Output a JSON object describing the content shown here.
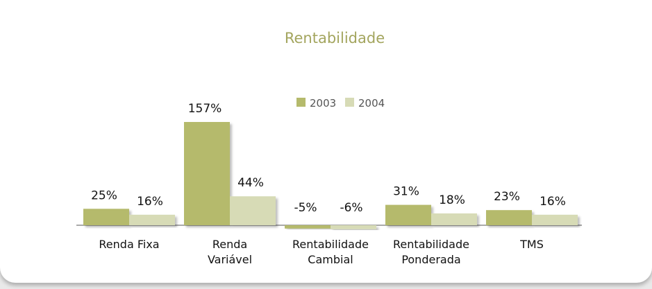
{
  "chart_data": {
    "type": "bar",
    "title": "Rentabilidade",
    "categories": [
      "Renda Fixa",
      "Renda\nVariável",
      "Rentabilidade\nCambial",
      "Rentabilidade\nPonderada",
      "TMS"
    ],
    "series": [
      {
        "name": "2003",
        "color": "#b5ba6c",
        "values": [
          25,
          157,
          -5,
          31,
          23
        ],
        "value_labels": [
          "25%",
          "157%",
          "-5%",
          "31%",
          "23%"
        ]
      },
      {
        "name": "2004",
        "color": "#d7dbb6",
        "values": [
          16,
          44,
          -6,
          18,
          16
        ],
        "value_labels": [
          "16%",
          "44%",
          "-6%",
          "18%",
          "16%"
        ]
      }
    ]
  }
}
